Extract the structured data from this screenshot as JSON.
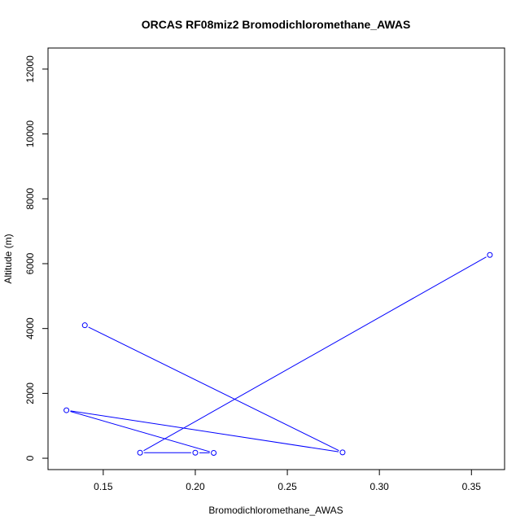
{
  "chart_data": {
    "type": "line",
    "title": "ORCAS RF08miz2 Bromodichloromethane_AWAS",
    "xlabel": "Bromodichloromethane_AWAS",
    "ylabel": "Altitude (m)",
    "xlim": [
      0.12,
      0.368
    ],
    "ylim": [
      -350,
      12650
    ],
    "x_ticks": [
      0.15,
      0.2,
      0.25,
      0.3,
      0.35
    ],
    "x_tick_labels": [
      "0.15",
      "0.20",
      "0.25",
      "0.30",
      "0.35"
    ],
    "y_ticks": [
      0,
      2000,
      4000,
      6000,
      8000,
      10000,
      12000
    ],
    "y_tick_labels": [
      "0",
      "2000",
      "4000",
      "6000",
      "8000",
      "10000",
      "12000"
    ],
    "grid": false,
    "series": [
      {
        "color": "#0000ff",
        "marker": "open-circle",
        "points": [
          {
            "x": 0.14,
            "y": 4100
          },
          {
            "x": 0.28,
            "y": 180
          },
          {
            "x": 0.13,
            "y": 1480
          },
          {
            "x": 0.21,
            "y": 165
          },
          {
            "x": 0.2,
            "y": 170
          },
          {
            "x": 0.17,
            "y": 170
          },
          {
            "x": 0.36,
            "y": 6270
          }
        ]
      }
    ]
  }
}
